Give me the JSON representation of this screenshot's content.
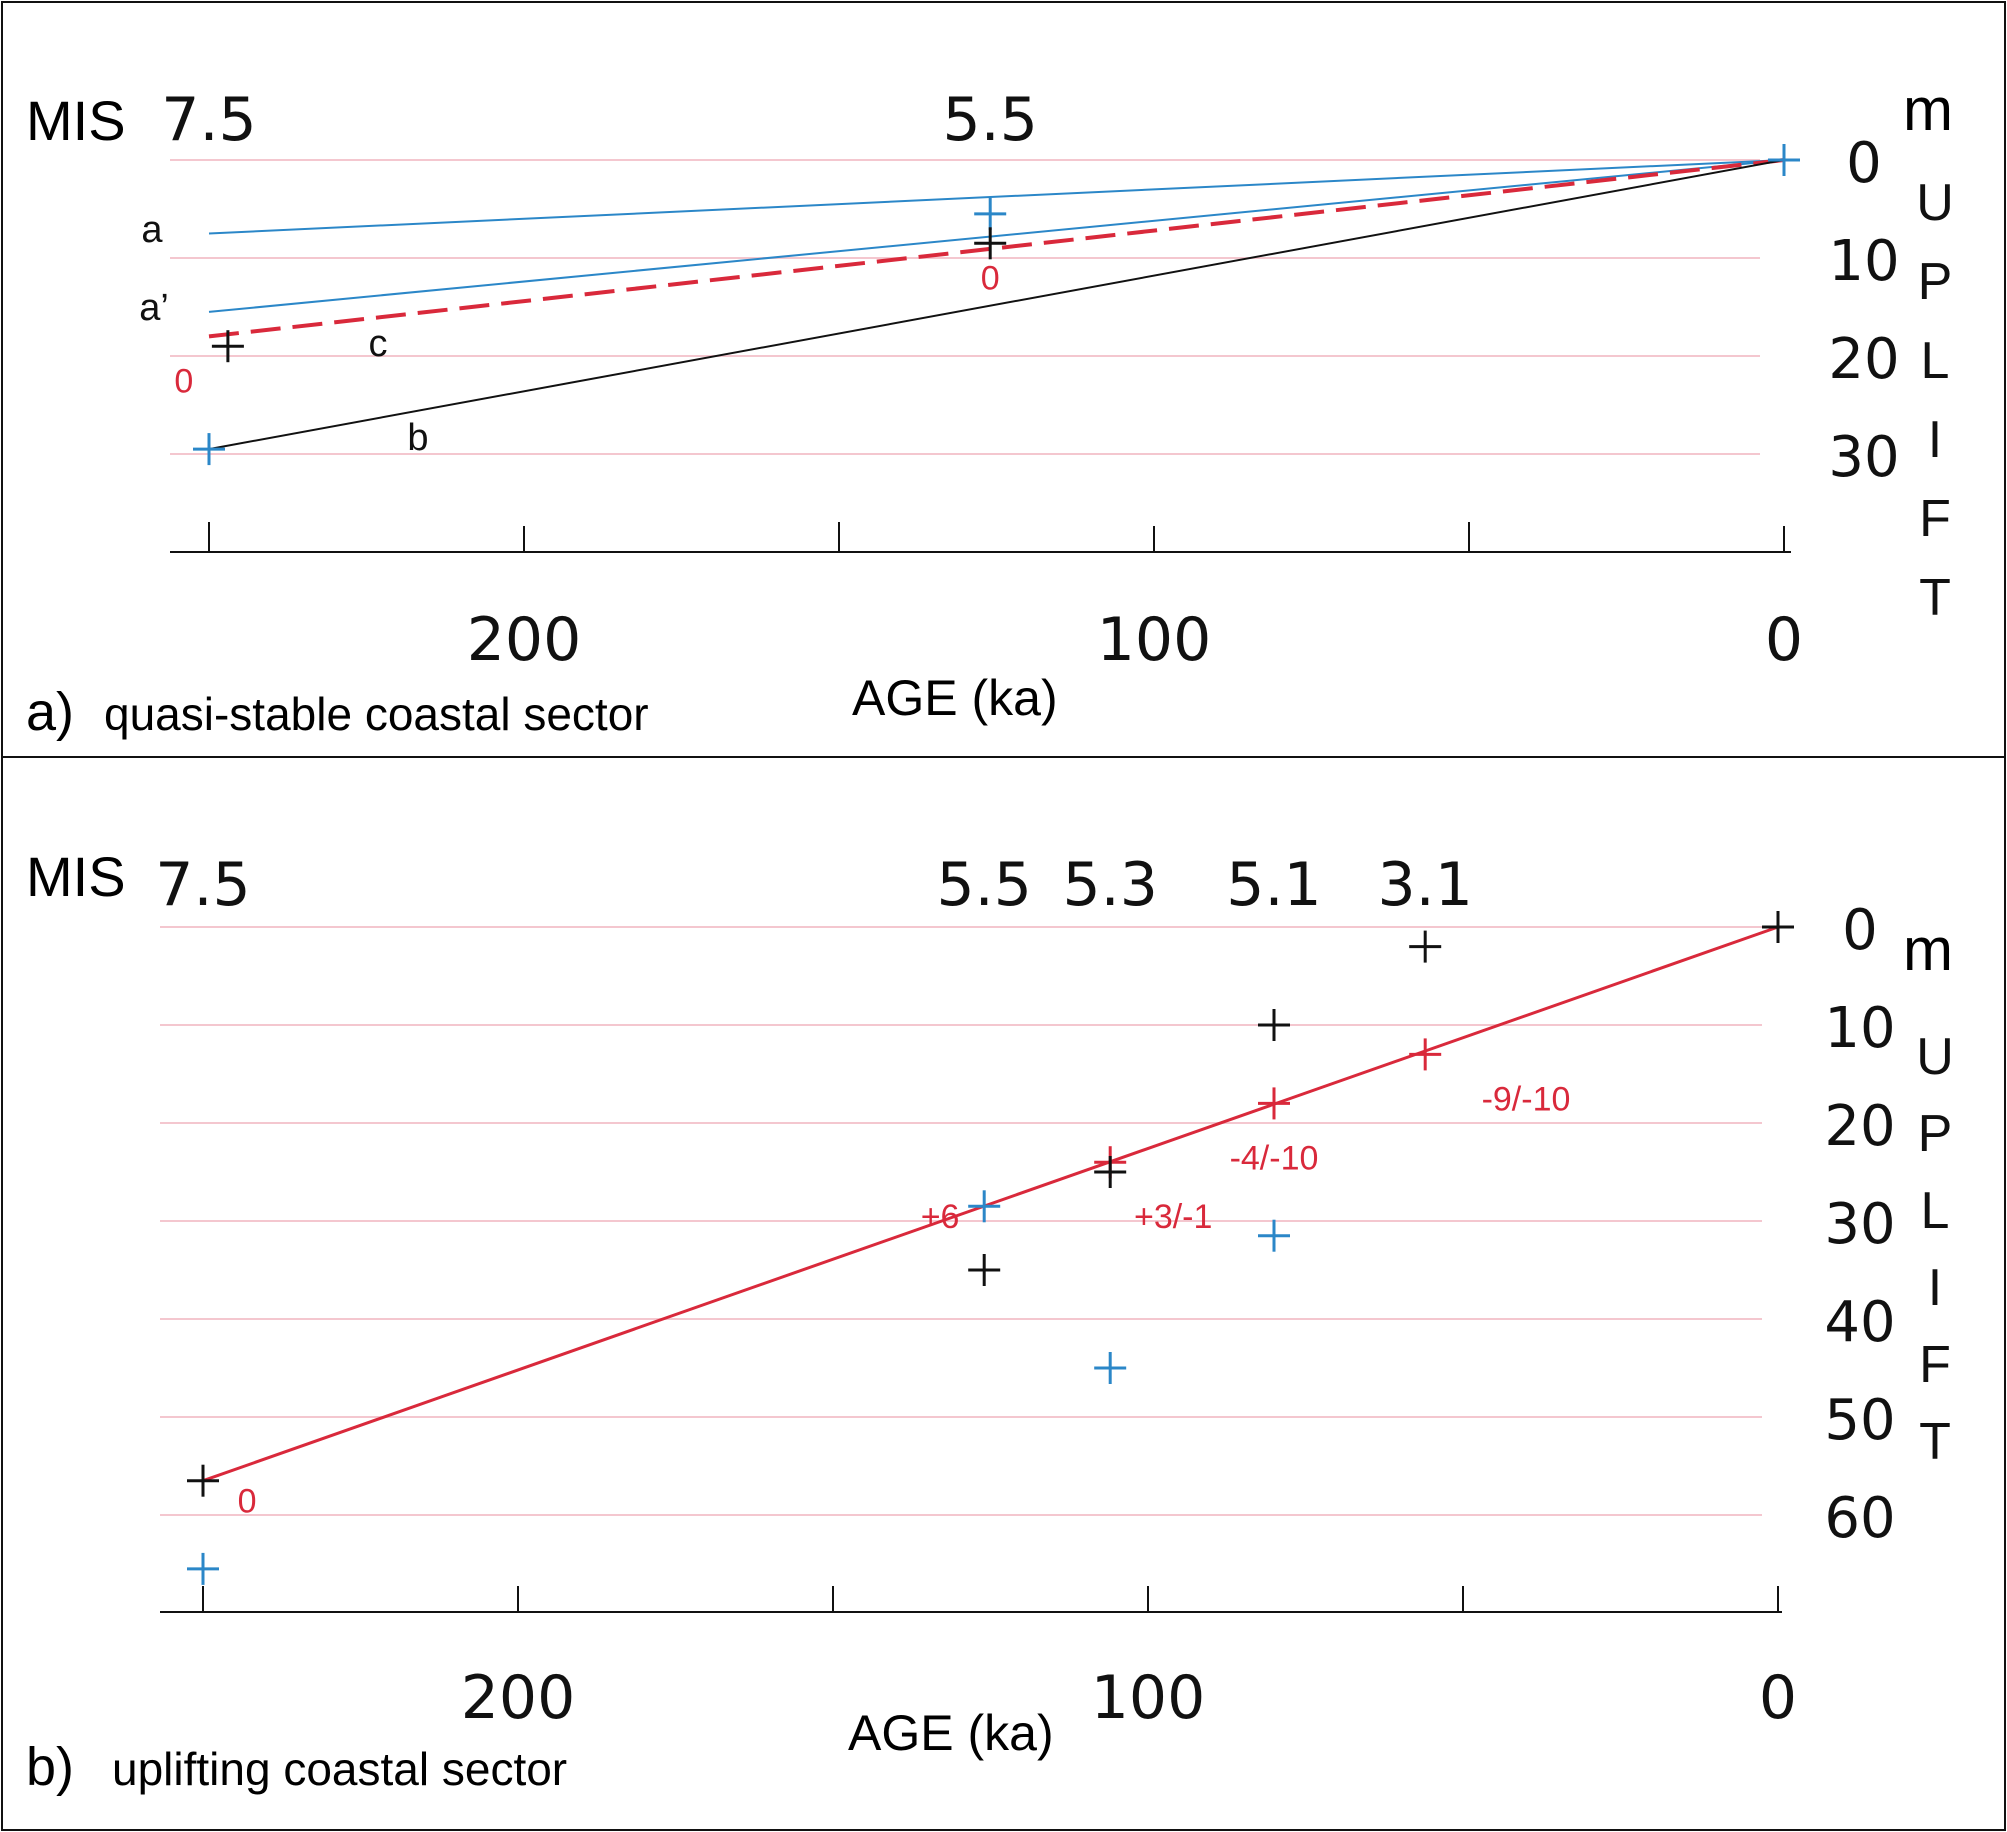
{
  "panels": [
    {
      "id": "a",
      "panel_label": "a)",
      "panel_title": "quasi-stable coastal sector",
      "mis_label": "MIS",
      "mis_stages": [
        {
          "label": "7.5",
          "age": 250
        },
        {
          "label": "5.5",
          "age": 126
        }
      ],
      "xlabel": "AGE (ka)",
      "xlim": [
        255,
        0
      ],
      "xticks_major": [
        200,
        100,
        0
      ],
      "xticks_minor": [
        250,
        150,
        50
      ],
      "ylim": [
        0,
        40
      ],
      "yticks": [
        0,
        10,
        20,
        30
      ],
      "yunit": "m",
      "ylabel_letters": [
        "U",
        "P",
        "L",
        "I",
        "F",
        "T"
      ],
      "gridlines": [
        0,
        10,
        20,
        30
      ],
      "lines": [
        {
          "name": "a",
          "label": "a",
          "color": "#2b87c8",
          "dashed": false,
          "from": [
            250,
            7.5
          ],
          "to": [
            0,
            0
          ]
        },
        {
          "name": "a-prime",
          "label": "a’",
          "color": "#2b87c8",
          "dashed": false,
          "from": [
            250,
            15.5
          ],
          "to": [
            0,
            0
          ]
        },
        {
          "name": "c",
          "label": "c",
          "color": "#d9293b",
          "dashed": true,
          "from": [
            250,
            18
          ],
          "to": [
            0,
            0
          ]
        },
        {
          "name": "b",
          "label": "b",
          "color": "#111111",
          "dashed": false,
          "from": [
            250,
            29.5
          ],
          "to": [
            0,
            0
          ]
        }
      ],
      "markers": [
        {
          "age": 0,
          "uplift": 0,
          "color": "#2b87c8"
        },
        {
          "age": 126,
          "uplift": 5.5,
          "color": "#2b87c8"
        },
        {
          "age": 126,
          "uplift": 8.5,
          "color": "#111111"
        },
        {
          "age": 247,
          "uplift": 19,
          "color": "#111111"
        },
        {
          "age": 250,
          "uplift": 29.5,
          "color": "#2b87c8"
        }
      ],
      "annotations": [
        {
          "text": "0",
          "age": 126,
          "uplift": 12,
          "color": "#d9293b"
        },
        {
          "text": "0",
          "age": 254,
          "uplift": 22.5,
          "color": "#d9293b"
        }
      ]
    },
    {
      "id": "b",
      "panel_label": "b)",
      "panel_title": "uplifting coastal sector",
      "mis_label": "MIS",
      "mis_stages": [
        {
          "label": "7.5",
          "age": 250
        },
        {
          "label": "5.5",
          "age": 126
        },
        {
          "label": "5.3",
          "age": 106
        },
        {
          "label": "5.1",
          "age": 80
        },
        {
          "label": "3.1",
          "age": 56
        }
      ],
      "xlabel": "AGE (ka)",
      "xlim": [
        255,
        0
      ],
      "xticks_major": [
        200,
        100,
        0
      ],
      "xticks_minor": [
        250,
        150,
        50
      ],
      "ylim": [
        0,
        70
      ],
      "yticks": [
        0,
        10,
        20,
        30,
        40,
        50,
        60
      ],
      "yunit": "m",
      "ylabel_letters": [
        "U",
        "P",
        "L",
        "I",
        "F",
        "T"
      ],
      "gridlines": [
        0,
        10,
        20,
        30,
        40,
        50,
        60
      ],
      "lines": [
        {
          "name": "uplift-line",
          "label": "",
          "color": "#d9293b",
          "dashed": false,
          "from": [
            250,
            56.5
          ],
          "to": [
            0,
            0
          ]
        }
      ],
      "markers": [
        {
          "age": 0,
          "uplift": 0,
          "color": "#111111"
        },
        {
          "age": 56,
          "uplift": 2,
          "color": "#111111"
        },
        {
          "age": 80,
          "uplift": 10,
          "color": "#111111"
        },
        {
          "age": 56,
          "uplift": 13,
          "color": "#d9293b"
        },
        {
          "age": 80,
          "uplift": 18,
          "color": "#d9293b"
        },
        {
          "age": 106,
          "uplift": 24,
          "color": "#d9293b"
        },
        {
          "age": 106,
          "uplift": 25,
          "color": "#111111"
        },
        {
          "age": 126,
          "uplift": 28.5,
          "color": "#2b87c8"
        },
        {
          "age": 80,
          "uplift": 31.5,
          "color": "#2b87c8"
        },
        {
          "age": 126,
          "uplift": 35,
          "color": "#111111"
        },
        {
          "age": 106,
          "uplift": 45,
          "color": "#2b87c8"
        },
        {
          "age": 250,
          "uplift": 56.5,
          "color": "#111111"
        },
        {
          "age": 250,
          "uplift": 65.5,
          "color": "#2b87c8"
        }
      ],
      "annotations": [
        {
          "text": "-9/-10",
          "age": 40,
          "uplift": 17.5,
          "color": "#d9293b"
        },
        {
          "text": "-4/-10",
          "age": 80,
          "uplift": 23.5,
          "color": "#d9293b"
        },
        {
          "text": "+3/-1",
          "age": 96,
          "uplift": 29.5,
          "color": "#d9293b"
        },
        {
          "text": "+6",
          "age": 133,
          "uplift": 29.5,
          "color": "#d9293b"
        },
        {
          "text": "0",
          "age": 243,
          "uplift": 58.5,
          "color": "#d9293b"
        }
      ]
    }
  ],
  "chart_data": [
    {
      "type": "line",
      "title": "a) quasi-stable coastal sector",
      "xlabel": "AGE (ka)",
      "ylabel": "m UPLIFT",
      "xlim": [
        255,
        0
      ],
      "ylim": [
        0,
        40
      ],
      "series": [
        {
          "name": "a",
          "x": [
            250,
            0
          ],
          "y": [
            7.5,
            0
          ]
        },
        {
          "name": "a’",
          "x": [
            250,
            0
          ],
          "y": [
            15.5,
            0
          ]
        },
        {
          "name": "c",
          "x": [
            250,
            0
          ],
          "y": [
            18,
            0
          ]
        },
        {
          "name": "b",
          "x": [
            250,
            0
          ],
          "y": [
            29.5,
            0
          ]
        }
      ]
    },
    {
      "type": "line",
      "title": "b) uplifting coastal sector",
      "xlabel": "AGE (ka)",
      "ylabel": "m UPLIFT",
      "xlim": [
        255,
        0
      ],
      "ylim": [
        0,
        70
      ],
      "series": [
        {
          "name": "uplift line",
          "x": [
            250,
            0
          ],
          "y": [
            56.5,
            0
          ]
        }
      ]
    }
  ]
}
